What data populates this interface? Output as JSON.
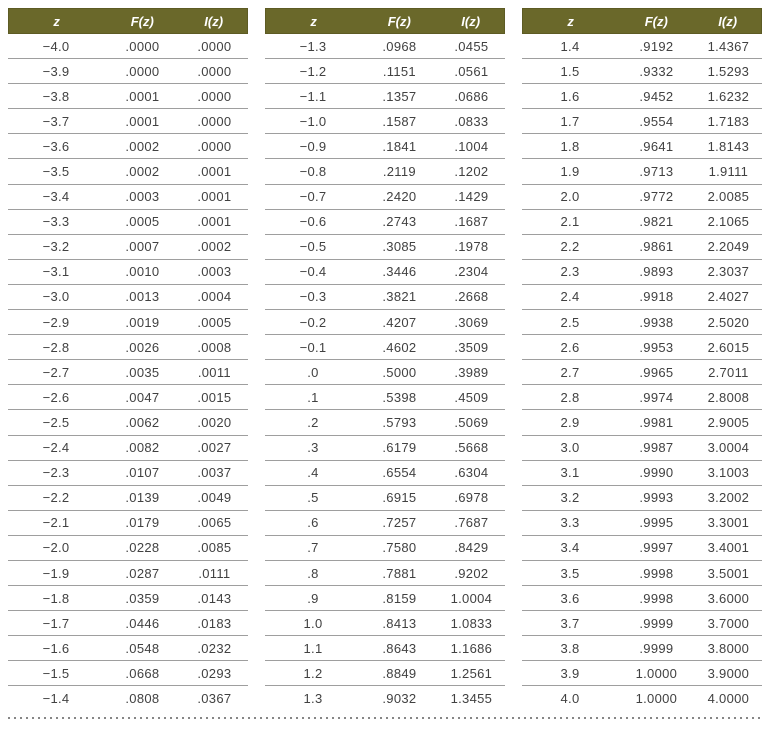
{
  "columns": [
    "z",
    "F(z)",
    "I(z)"
  ],
  "colors": {
    "header_bg": "#6a682a",
    "header_border": "#5d5b24",
    "header_text": "#ffffff",
    "cell_text": "#414141",
    "row_divider": "#9e9e9e",
    "dotted_line": "#868686"
  },
  "tables": [
    {
      "rows": [
        [
          "−4.0",
          ".0000",
          ".0000"
        ],
        [
          "−3.9",
          ".0000",
          ".0000"
        ],
        [
          "−3.8",
          ".0001",
          ".0000"
        ],
        [
          "−3.7",
          ".0001",
          ".0000"
        ],
        [
          "−3.6",
          ".0002",
          ".0000"
        ],
        [
          "−3.5",
          ".0002",
          ".0001"
        ],
        [
          "−3.4",
          ".0003",
          ".0001"
        ],
        [
          "−3.3",
          ".0005",
          ".0001"
        ],
        [
          "−3.2",
          ".0007",
          ".0002"
        ],
        [
          "−3.1",
          ".0010",
          ".0003"
        ],
        [
          "−3.0",
          ".0013",
          ".0004"
        ],
        [
          "−2.9",
          ".0019",
          ".0005"
        ],
        [
          "−2.8",
          ".0026",
          ".0008"
        ],
        [
          "−2.7",
          ".0035",
          ".0011"
        ],
        [
          "−2.6",
          ".0047",
          ".0015"
        ],
        [
          "−2.5",
          ".0062",
          ".0020"
        ],
        [
          "−2.4",
          ".0082",
          ".0027"
        ],
        [
          "−2.3",
          ".0107",
          ".0037"
        ],
        [
          "−2.2",
          ".0139",
          ".0049"
        ],
        [
          "−2.1",
          ".0179",
          ".0065"
        ],
        [
          "−2.0",
          ".0228",
          ".0085"
        ],
        [
          "−1.9",
          ".0287",
          ".0111"
        ],
        [
          "−1.8",
          ".0359",
          ".0143"
        ],
        [
          "−1.7",
          ".0446",
          ".0183"
        ],
        [
          "−1.6",
          ".0548",
          ".0232"
        ],
        [
          "−1.5",
          ".0668",
          ".0293"
        ],
        [
          "−1.4",
          ".0808",
          ".0367"
        ]
      ]
    },
    {
      "rows": [
        [
          "−1.3",
          ".0968",
          ".0455"
        ],
        [
          "−1.2",
          ".1151",
          ".0561"
        ],
        [
          "−1.1",
          ".1357",
          ".0686"
        ],
        [
          "−1.0",
          ".1587",
          ".0833"
        ],
        [
          "−0.9",
          ".1841",
          ".1004"
        ],
        [
          "−0.8",
          ".2119",
          ".1202"
        ],
        [
          "−0.7",
          ".2420",
          ".1429"
        ],
        [
          "−0.6",
          ".2743",
          ".1687"
        ],
        [
          "−0.5",
          ".3085",
          ".1978"
        ],
        [
          "−0.4",
          ".3446",
          ".2304"
        ],
        [
          "−0.3",
          ".3821",
          ".2668"
        ],
        [
          "−0.2",
          ".4207",
          ".3069"
        ],
        [
          "−0.1",
          ".4602",
          ".3509"
        ],
        [
          ".0",
          ".5000",
          ".3989"
        ],
        [
          ".1",
          ".5398",
          ".4509"
        ],
        [
          ".2",
          ".5793",
          ".5069"
        ],
        [
          ".3",
          ".6179",
          ".5668"
        ],
        [
          ".4",
          ".6554",
          ".6304"
        ],
        [
          ".5",
          ".6915",
          ".6978"
        ],
        [
          ".6",
          ".7257",
          ".7687"
        ],
        [
          ".7",
          ".7580",
          ".8429"
        ],
        [
          ".8",
          ".7881",
          ".9202"
        ],
        [
          ".9",
          ".8159",
          "1.0004"
        ],
        [
          "1.0",
          ".8413",
          "1.0833"
        ],
        [
          "1.1",
          ".8643",
          "1.1686"
        ],
        [
          "1.2",
          ".8849",
          "1.2561"
        ],
        [
          "1.3",
          ".9032",
          "1.3455"
        ]
      ]
    },
    {
      "rows": [
        [
          "1.4",
          ".9192",
          "1.4367"
        ],
        [
          "1.5",
          ".9332",
          "1.5293"
        ],
        [
          "1.6",
          ".9452",
          "1.6232"
        ],
        [
          "1.7",
          ".9554",
          "1.7183"
        ],
        [
          "1.8",
          ".9641",
          "1.8143"
        ],
        [
          "1.9",
          ".9713",
          "1.9111"
        ],
        [
          "2.0",
          ".9772",
          "2.0085"
        ],
        [
          "2.1",
          ".9821",
          "2.1065"
        ],
        [
          "2.2",
          ".9861",
          "2.2049"
        ],
        [
          "2.3",
          ".9893",
          "2.3037"
        ],
        [
          "2.4",
          ".9918",
          "2.4027"
        ],
        [
          "2.5",
          ".9938",
          "2.5020"
        ],
        [
          "2.6",
          ".9953",
          "2.6015"
        ],
        [
          "2.7",
          ".9965",
          "2.7011"
        ],
        [
          "2.8",
          ".9974",
          "2.8008"
        ],
        [
          "2.9",
          ".9981",
          "2.9005"
        ],
        [
          "3.0",
          ".9987",
          "3.0004"
        ],
        [
          "3.1",
          ".9990",
          "3.1003"
        ],
        [
          "3.2",
          ".9993",
          "3.2002"
        ],
        [
          "3.3",
          ".9995",
          "3.3001"
        ],
        [
          "3.4",
          ".9997",
          "3.4001"
        ],
        [
          "3.5",
          ".9998",
          "3.5001"
        ],
        [
          "3.6",
          ".9998",
          "3.6000"
        ],
        [
          "3.7",
          ".9999",
          "3.7000"
        ],
        [
          "3.8",
          ".9999",
          "3.8000"
        ],
        [
          "3.9",
          "1.0000",
          "3.9000"
        ],
        [
          "4.0",
          "1.0000",
          "4.0000"
        ]
      ]
    }
  ]
}
